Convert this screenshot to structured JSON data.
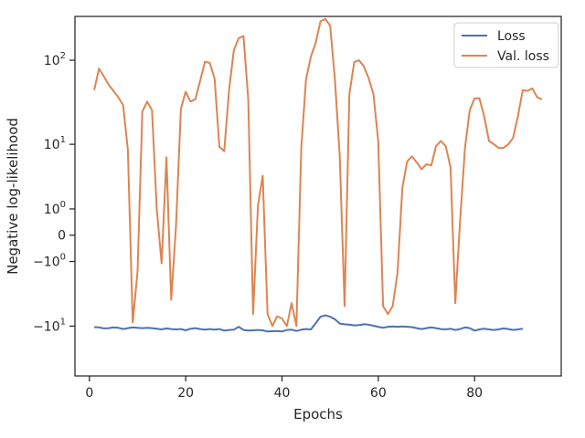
{
  "chart_data": {
    "type": "line",
    "xlabel": "Epochs",
    "ylabel": "Negative log-likelihood",
    "y_scale": "symlog",
    "xlim": [
      -3,
      98
    ],
    "ylim": [
      -40,
      320
    ],
    "x_ticks": [
      0,
      20,
      40,
      60,
      80
    ],
    "y_ticks": [
      {
        "value": 100,
        "label": "10^2"
      },
      {
        "value": 10,
        "label": "10^1"
      },
      {
        "value": 1,
        "label": "10^0"
      },
      {
        "value": 0,
        "label": "0"
      },
      {
        "value": -1,
        "label": "-10^0"
      },
      {
        "value": -10,
        "label": "-10^1"
      }
    ],
    "grid": false,
    "legend_position": "top-right",
    "series": [
      {
        "name": "Loss",
        "color": "#4c72b0",
        "points": [
          [
            1,
            -10.3
          ],
          [
            2,
            -10.4
          ],
          [
            3,
            -10.7
          ],
          [
            4,
            -10.6
          ],
          [
            5,
            -10.4
          ],
          [
            6,
            -10.5
          ],
          [
            7,
            -10.9
          ],
          [
            8,
            -10.6
          ],
          [
            9,
            -10.4
          ],
          [
            10,
            -10.5
          ],
          [
            11,
            -10.6
          ],
          [
            12,
            -10.5
          ],
          [
            13,
            -10.6
          ],
          [
            14,
            -10.8
          ],
          [
            15,
            -11.0
          ],
          [
            16,
            -10.7
          ],
          [
            17,
            -10.9
          ],
          [
            18,
            -11.0
          ],
          [
            19,
            -10.9
          ],
          [
            20,
            -11.3
          ],
          [
            21,
            -10.8
          ],
          [
            22,
            -10.6
          ],
          [
            23,
            -10.9
          ],
          [
            24,
            -11.1
          ],
          [
            25,
            -10.9
          ],
          [
            26,
            -11.1
          ],
          [
            27,
            -10.9
          ],
          [
            28,
            -11.4
          ],
          [
            29,
            -11.2
          ],
          [
            30,
            -11.1
          ],
          [
            31,
            -10.2
          ],
          [
            32,
            -11.2
          ],
          [
            33,
            -11.4
          ],
          [
            34,
            -11.3
          ],
          [
            35,
            -11.2
          ],
          [
            36,
            -11.3
          ],
          [
            37,
            -11.7
          ],
          [
            38,
            -11.6
          ],
          [
            39,
            -11.5
          ],
          [
            40,
            -11.7
          ],
          [
            41,
            -11.2
          ],
          [
            42,
            -11.1
          ],
          [
            43,
            -11.5
          ],
          [
            44,
            -11.1
          ],
          [
            45,
            -10.9
          ],
          [
            46,
            -11.0
          ],
          [
            47,
            -9.2
          ],
          [
            48,
            -7.6
          ],
          [
            49,
            -7.3
          ],
          [
            50,
            -7.6
          ],
          [
            51,
            -8.2
          ],
          [
            52,
            -9.3
          ],
          [
            53,
            -9.5
          ],
          [
            54,
            -9.6
          ],
          [
            55,
            -9.8
          ],
          [
            56,
            -9.7
          ],
          [
            57,
            -9.5
          ],
          [
            58,
            -9.6
          ],
          [
            59,
            -9.9
          ],
          [
            60,
            -10.2
          ],
          [
            61,
            -10.5
          ],
          [
            62,
            -10.2
          ],
          [
            63,
            -10.1
          ],
          [
            64,
            -10.2
          ],
          [
            65,
            -10.1
          ],
          [
            66,
            -10.2
          ],
          [
            67,
            -10.3
          ],
          [
            68,
            -10.6
          ],
          [
            69,
            -10.9
          ],
          [
            70,
            -10.6
          ],
          [
            71,
            -10.4
          ],
          [
            72,
            -10.6
          ],
          [
            73,
            -10.9
          ],
          [
            74,
            -11.0
          ],
          [
            75,
            -10.8
          ],
          [
            76,
            -11.2
          ],
          [
            77,
            -10.9
          ],
          [
            78,
            -10.4
          ],
          [
            79,
            -10.6
          ],
          [
            80,
            -11.4
          ],
          [
            81,
            -11.0
          ],
          [
            82,
            -10.8
          ],
          [
            83,
            -11.0
          ],
          [
            84,
            -11.2
          ],
          [
            85,
            -11.0
          ],
          [
            86,
            -10.7
          ],
          [
            87,
            -10.9
          ],
          [
            88,
            -11.2
          ],
          [
            89,
            -11.0
          ],
          [
            90,
            -10.8
          ]
        ]
      },
      {
        "name": "Val. loss",
        "color": "#dd8452",
        "points": [
          [
            1,
            45
          ],
          [
            2,
            80
          ],
          [
            3,
            65
          ],
          [
            4,
            52
          ],
          [
            5,
            44
          ],
          [
            6,
            37
          ],
          [
            7,
            30
          ],
          [
            8,
            8.5
          ],
          [
            9,
            -9
          ],
          [
            10,
            -1.6
          ],
          [
            11,
            25
          ],
          [
            12,
            33
          ],
          [
            13,
            26
          ],
          [
            14,
            1.0
          ],
          [
            15,
            -1.1
          ],
          [
            16,
            6.8
          ],
          [
            17,
            -4.5
          ],
          [
            18,
            0.3
          ],
          [
            19,
            27
          ],
          [
            20,
            43
          ],
          [
            21,
            33
          ],
          [
            22,
            35
          ],
          [
            23,
            58
          ],
          [
            24,
            96
          ],
          [
            25,
            93
          ],
          [
            26,
            61
          ],
          [
            27,
            9.3
          ],
          [
            28,
            8.2
          ],
          [
            29,
            45
          ],
          [
            30,
            130
          ],
          [
            31,
            180
          ],
          [
            32,
            190
          ],
          [
            33,
            35
          ],
          [
            34,
            -7
          ],
          [
            35,
            1.2
          ],
          [
            36,
            3.8
          ],
          [
            37,
            -7
          ],
          [
            38,
            -10
          ],
          [
            39,
            -7.5
          ],
          [
            40,
            -8.0
          ],
          [
            41,
            -10
          ],
          [
            42,
            -5.0
          ],
          [
            43,
            -10
          ],
          [
            44,
            9.0
          ],
          [
            45,
            60
          ],
          [
            46,
            110
          ],
          [
            47,
            160
          ],
          [
            48,
            280
          ],
          [
            49,
            300
          ],
          [
            50,
            250
          ],
          [
            51,
            60
          ],
          [
            52,
            7.0
          ],
          [
            53,
            -5.5
          ],
          [
            54,
            40
          ],
          [
            55,
            95
          ],
          [
            56,
            100
          ],
          [
            57,
            85
          ],
          [
            58,
            62
          ],
          [
            59,
            40
          ],
          [
            60,
            11
          ],
          [
            61,
            -5.5
          ],
          [
            62,
            -7
          ],
          [
            63,
            -5.5
          ],
          [
            64,
            -1.7
          ],
          [
            65,
            2.5
          ],
          [
            66,
            6.0
          ],
          [
            67,
            7.0
          ],
          [
            68,
            5.8
          ],
          [
            69,
            4.7
          ],
          [
            70,
            5.5
          ],
          [
            71,
            5.3
          ],
          [
            72,
            9.5
          ],
          [
            73,
            11
          ],
          [
            74,
            9.5
          ],
          [
            75,
            5.0
          ],
          [
            76,
            -5.0
          ],
          [
            77,
            0.5
          ],
          [
            78,
            9.0
          ],
          [
            79,
            26
          ],
          [
            80,
            36
          ],
          [
            81,
            36
          ],
          [
            82,
            22
          ],
          [
            83,
            11
          ],
          [
            84,
            10
          ],
          [
            85,
            9.0
          ],
          [
            86,
            9.0
          ],
          [
            87,
            10
          ],
          [
            88,
            12
          ],
          [
            89,
            22
          ],
          [
            90,
            45
          ],
          [
            91,
            44
          ],
          [
            92,
            47
          ],
          [
            93,
            37
          ],
          [
            94,
            35
          ]
        ]
      }
    ]
  }
}
